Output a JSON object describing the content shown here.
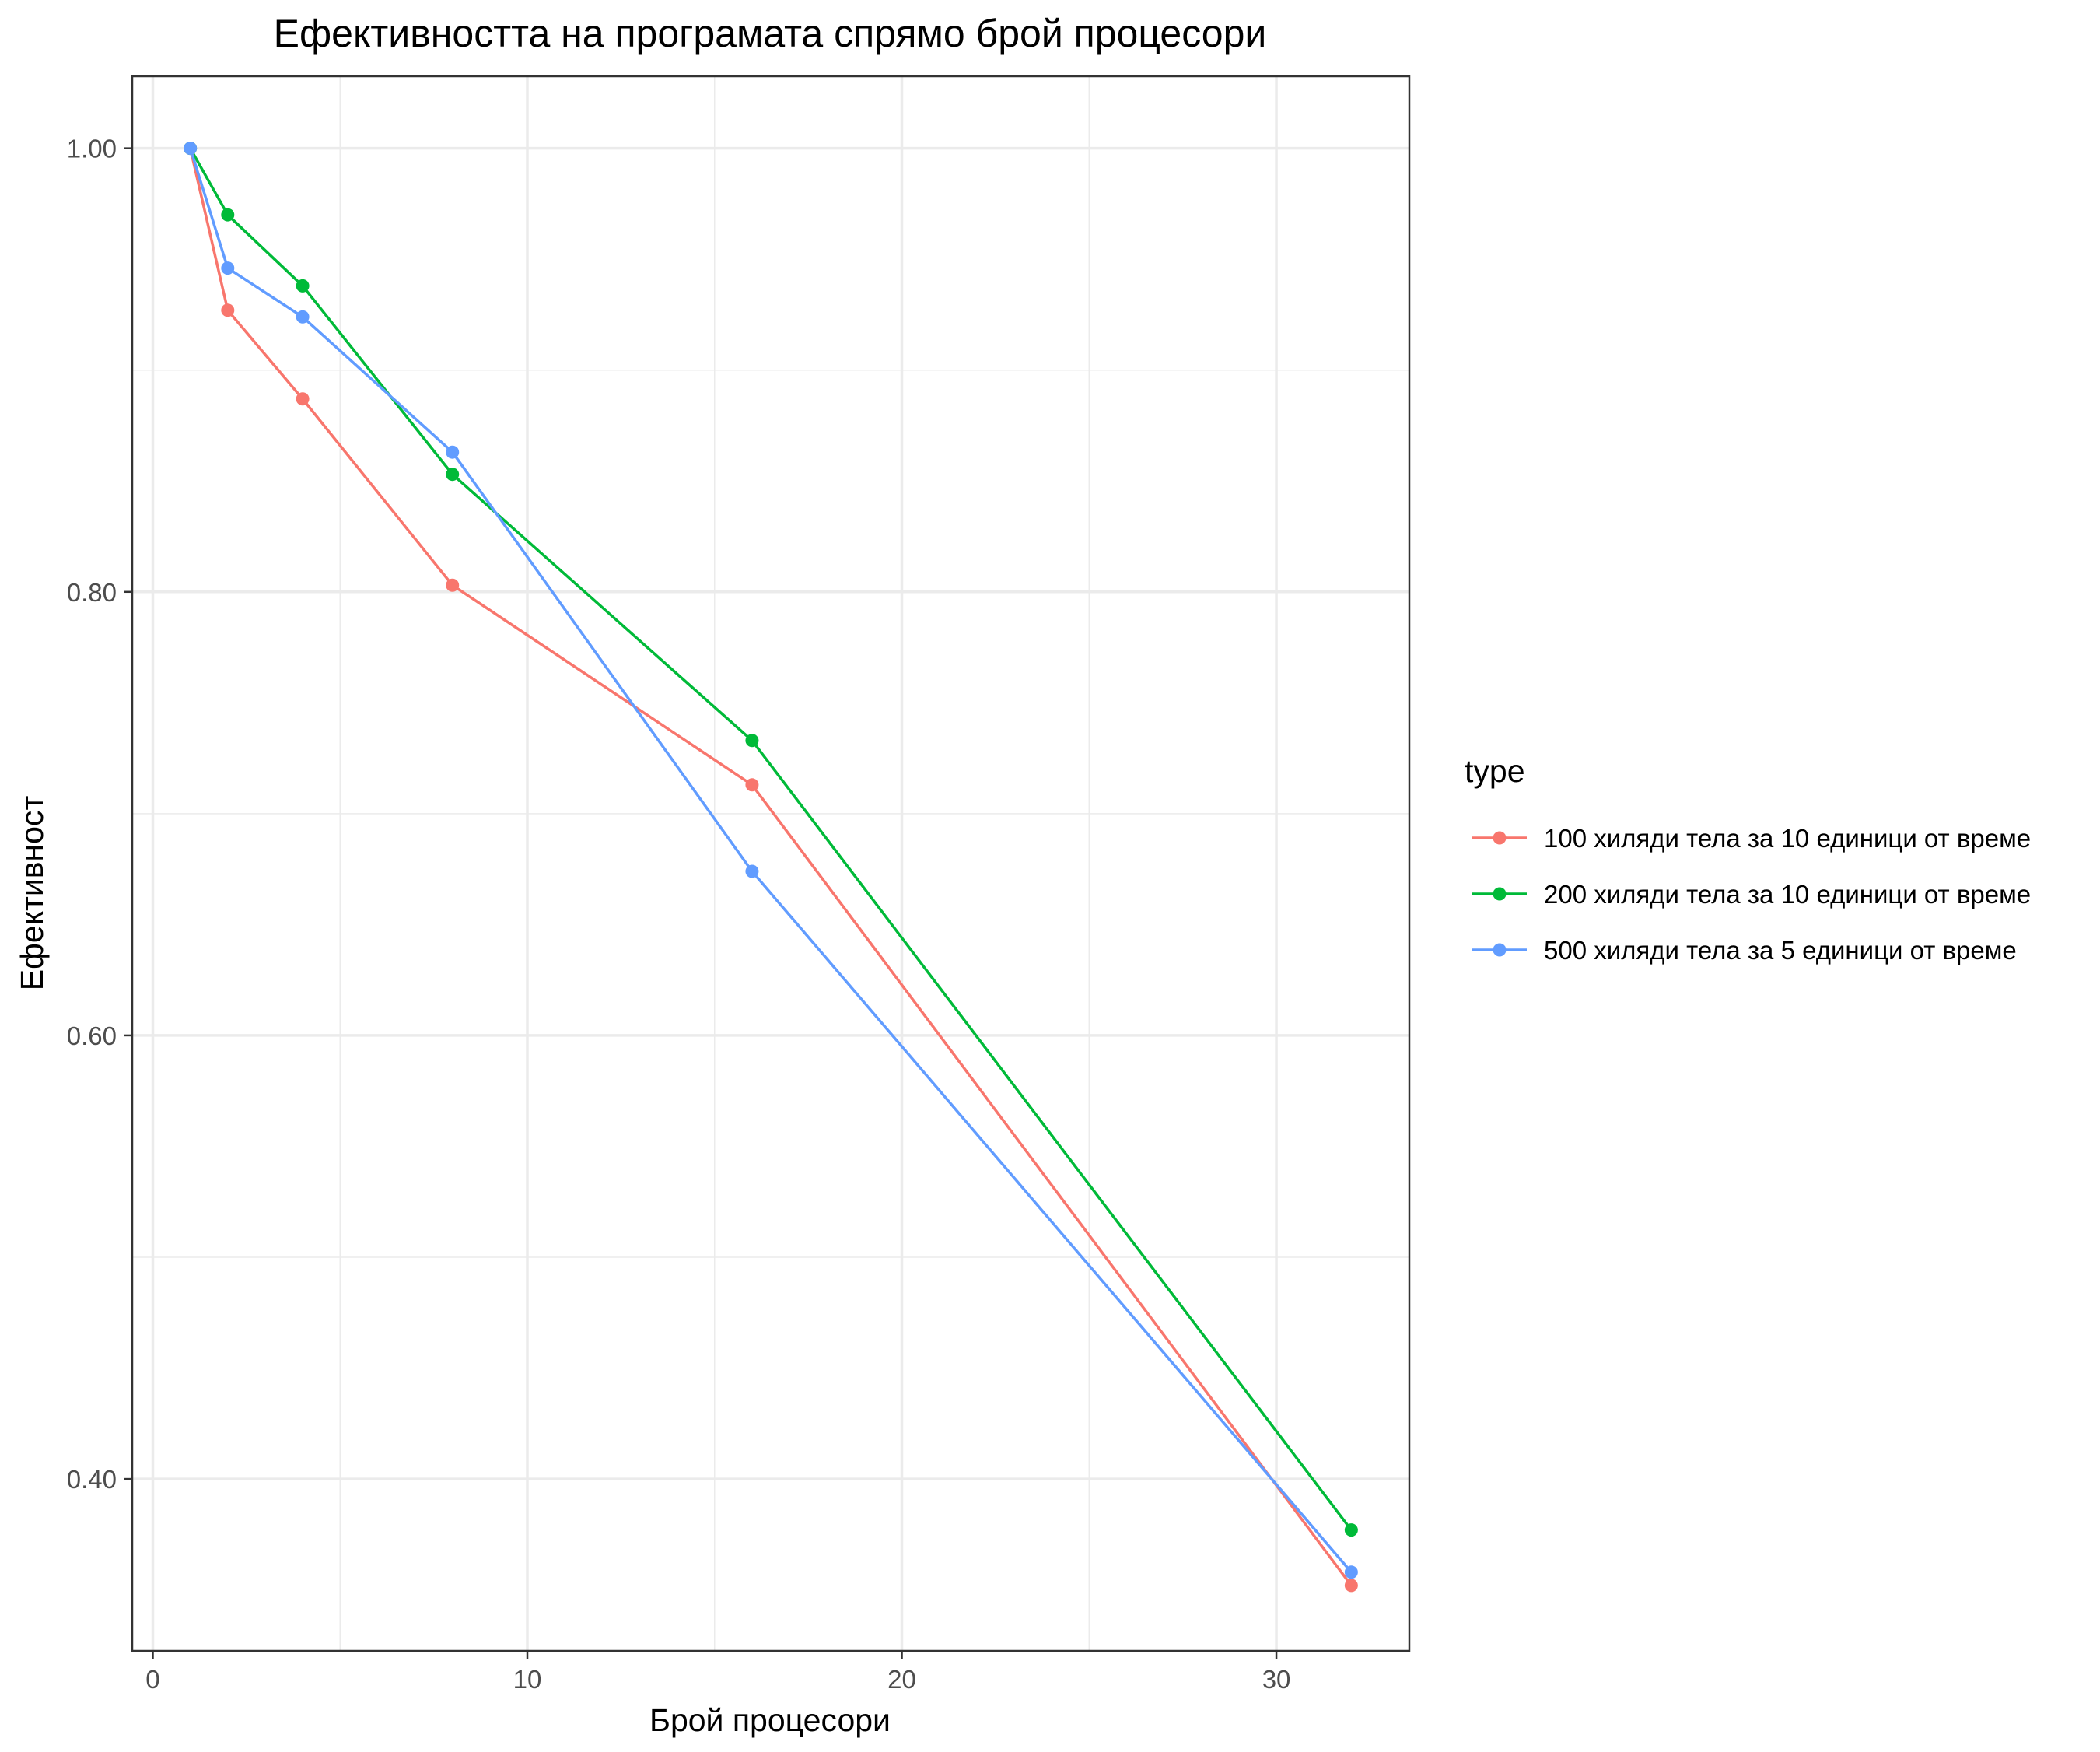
{
  "chart_data": {
    "type": "line",
    "title": "Ефективността на програмата спрямо брой процесори",
    "xlabel": "Брой процесори",
    "ylabel": "Ефективност",
    "xlim": [
      -0.55,
      33.55
    ],
    "ylim": [
      0.3225,
      1.0325
    ],
    "x_ticks": [
      0,
      10,
      20,
      30
    ],
    "y_ticks": [
      0.4,
      0.6,
      0.8,
      1.0
    ],
    "y_tick_labels": [
      "0.40",
      "0.60",
      "0.80",
      "1.00"
    ],
    "grid": true,
    "legend": {
      "title": "type",
      "placement": "right"
    },
    "x": [
      1,
      2,
      4,
      8,
      16,
      32
    ],
    "series": [
      {
        "name": "100 хиляди тела за 10 единици от време",
        "color": "#F8766D",
        "values": [
          1.0,
          0.927,
          0.887,
          0.803,
          0.713,
          0.352
        ]
      },
      {
        "name": "200 хиляди тела за 10 единици от време",
        "color": "#00BA38",
        "values": [
          1.0,
          0.97,
          0.938,
          0.853,
          0.733,
          0.377
        ]
      },
      {
        "name": "500 хиляди тела за 5 единици от време",
        "color": "#619CFF",
        "values": [
          1.0,
          0.946,
          0.924,
          0.863,
          0.674,
          0.358
        ]
      }
    ]
  }
}
